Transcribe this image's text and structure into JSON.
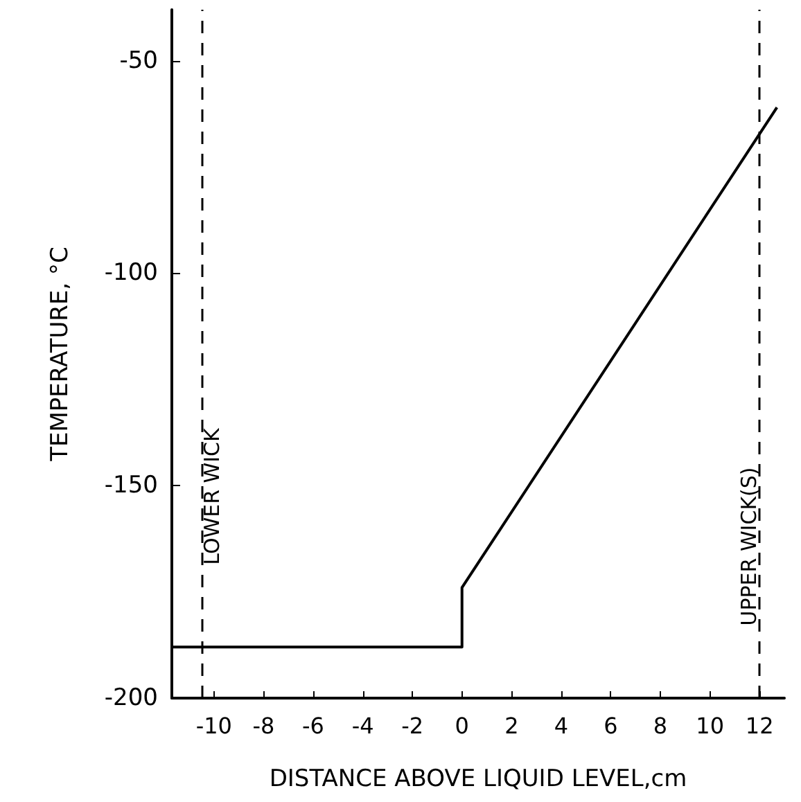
{
  "chart_data": {
    "type": "line",
    "xlabel": "DISTANCE ABOVE LIQUID LEVEL,cm",
    "ylabel": "TEMPERATURE, °C",
    "xlim": [
      -11.7,
      13
    ],
    "xticks": [
      -10,
      -8,
      -6,
      -4,
      -2,
      0,
      2,
      4,
      6,
      8,
      10,
      12
    ],
    "ylim": [
      -200,
      -38
    ],
    "yticks": [
      -200,
      -150,
      -100,
      -50
    ],
    "series": [
      {
        "color": "#000000",
        "x": [
          -11.7,
          0,
          0,
          12.7
        ],
        "values": [
          -188,
          -188,
          -174,
          -61
        ]
      }
    ],
    "ref_lines": [
      {
        "axis": "x",
        "value": -10.5,
        "label": "LOWER WICK",
        "color": "#000000",
        "line_style": "dashed"
      },
      {
        "axis": "x",
        "value": 12,
        "label": "UPPER WICK(S)",
        "color": "#000000",
        "line_style": "dashed"
      }
    ],
    "grid": false,
    "marker": "none",
    "line_style": "solid"
  }
}
